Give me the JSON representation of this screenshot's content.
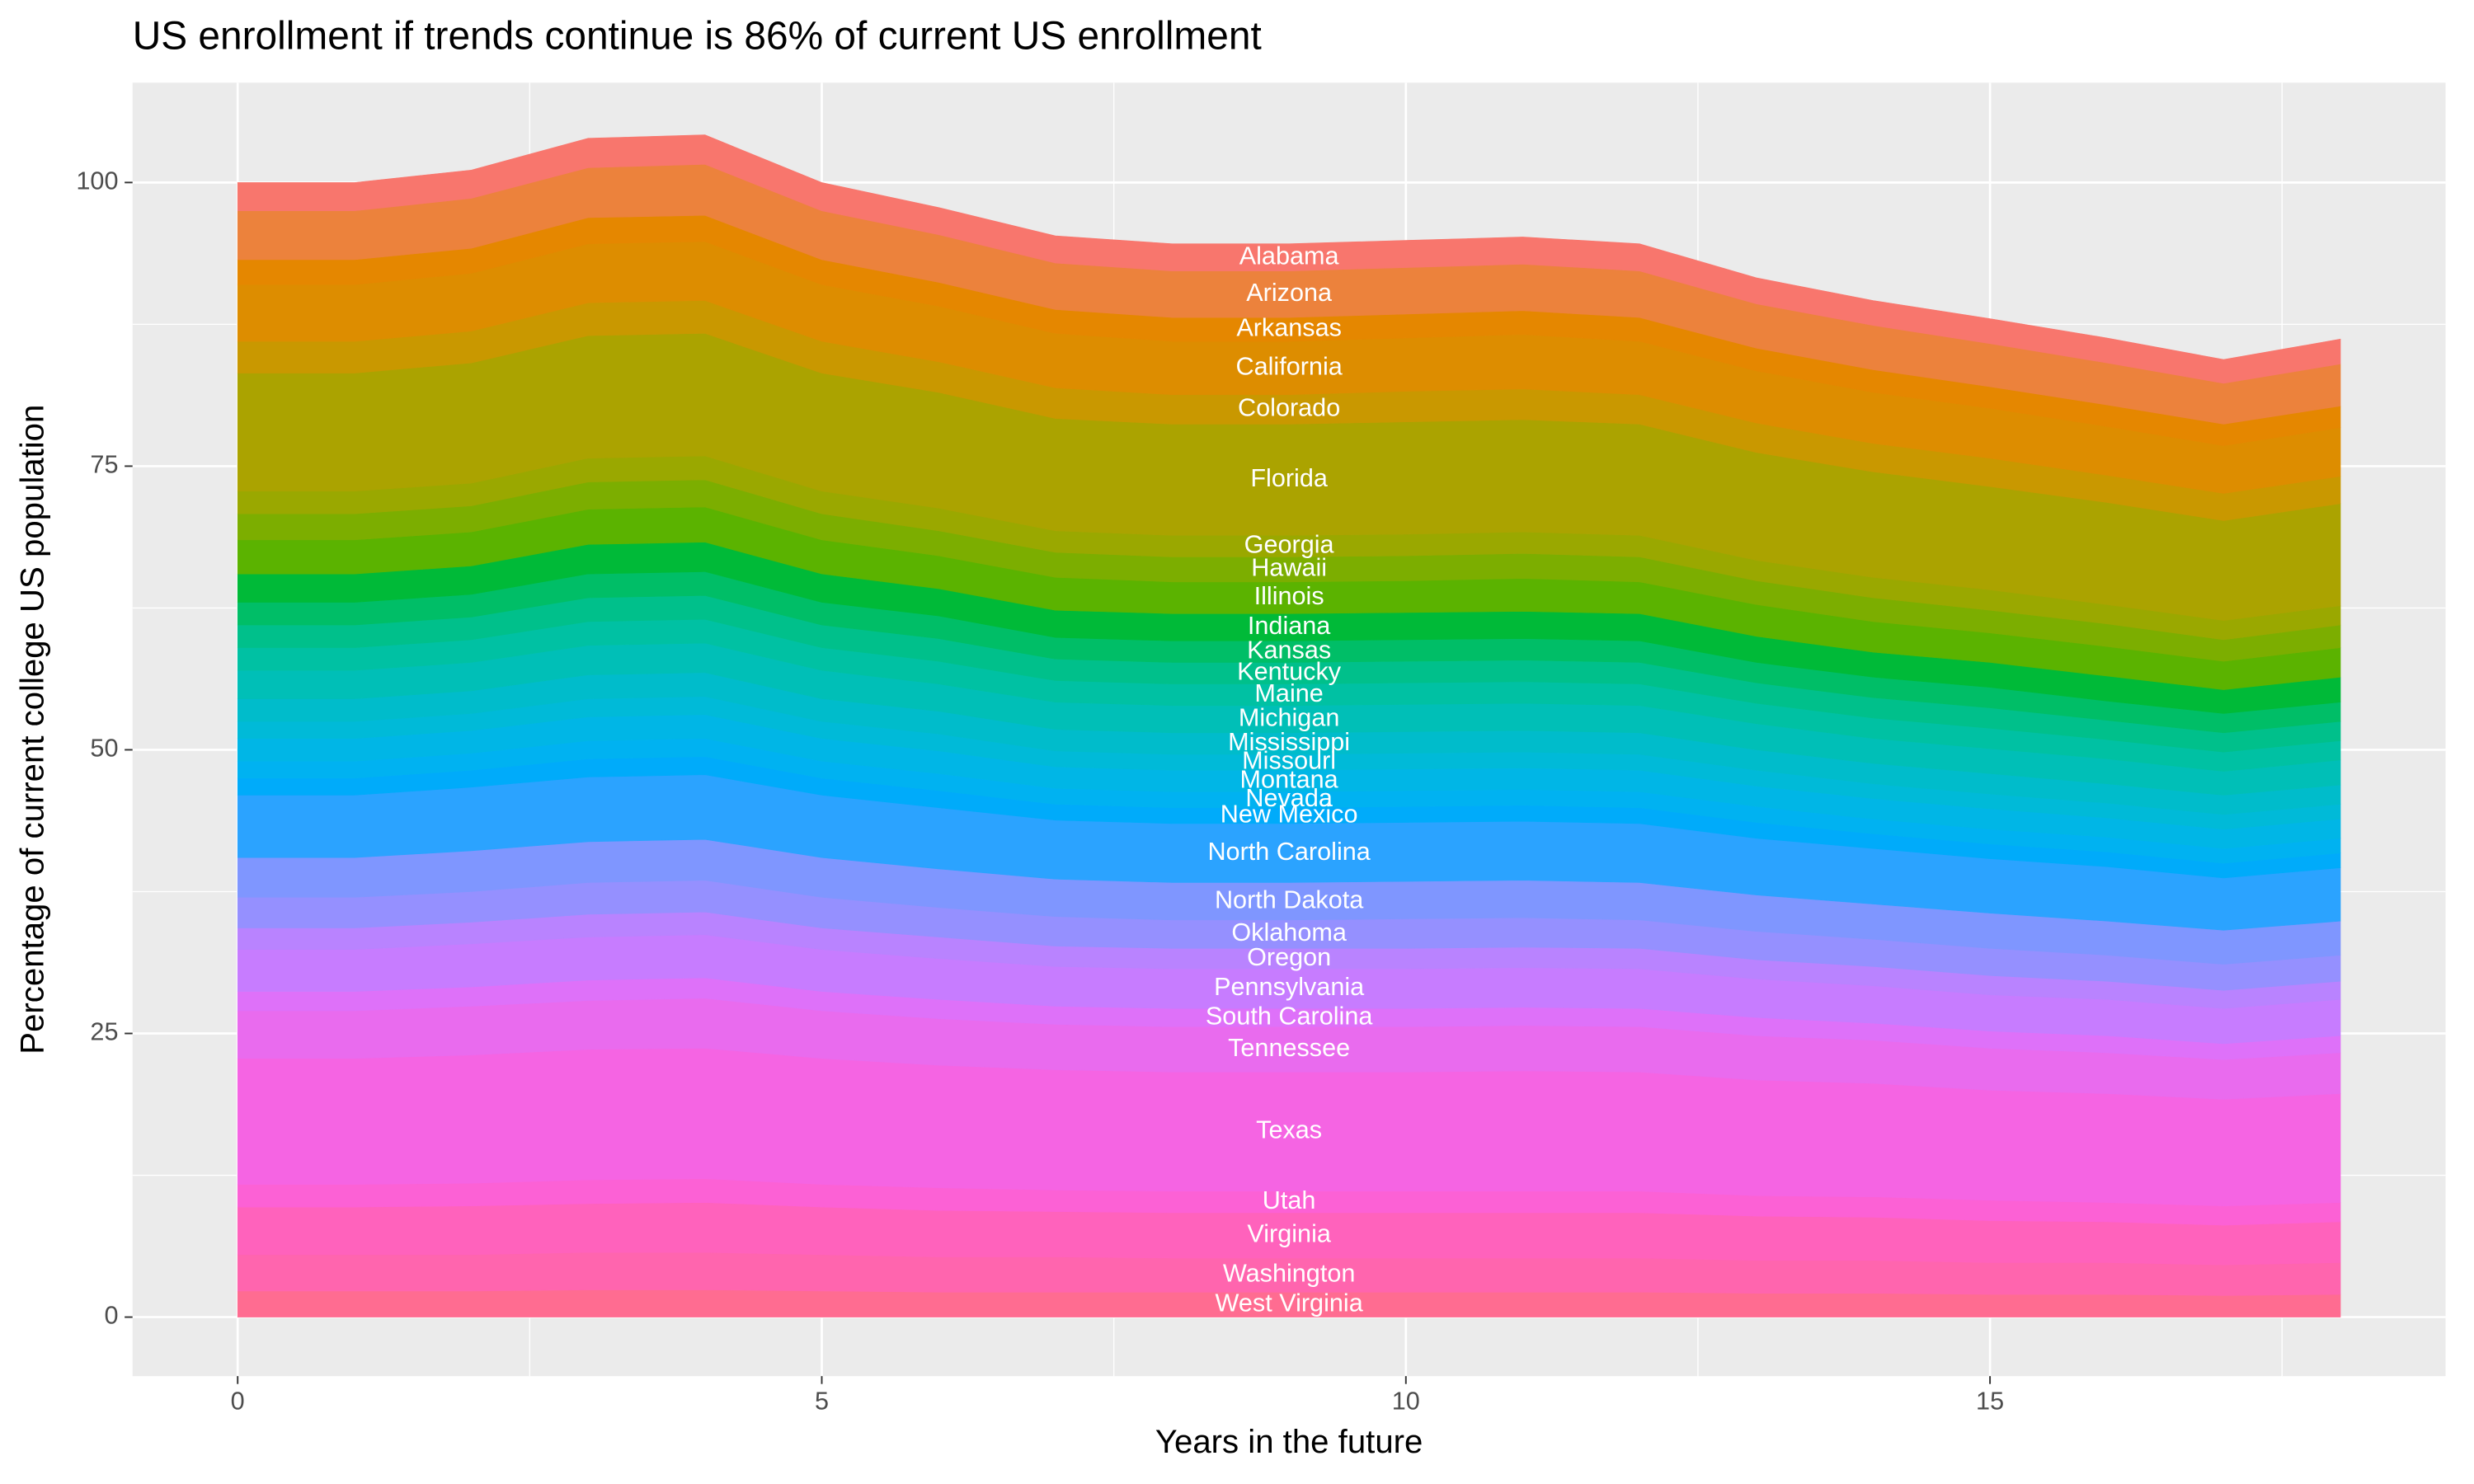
{
  "chart_data": {
    "type": "stacked_area",
    "title": "US enrollment if trends continue is 86% of current US enrollment",
    "x_label": "Years in the future",
    "y_label": "Percentage of current college US population",
    "x": [
      0,
      1,
      2,
      3,
      4,
      5,
      6,
      7,
      8,
      9,
      10,
      11,
      12,
      13,
      14,
      15,
      16,
      17,
      18
    ],
    "xlim": [
      -0.9,
      18.9
    ],
    "ylim": [
      -5.2,
      108.8
    ],
    "xticks": [
      0,
      5,
      10,
      15
    ],
    "yticks": [
      0,
      25,
      50,
      75,
      100
    ],
    "minor_xticks": [
      2.5,
      7.5,
      12.5,
      17.5
    ],
    "minor_yticks": [
      12.5,
      37.5,
      62.5,
      87.5
    ],
    "grid": true,
    "series": [
      {
        "name": "Alabama",
        "color": "#F8766D",
        "values": [
          2.5,
          2.5,
          2.5,
          2.6,
          2.6,
          2.5,
          2.4,
          2.4,
          2.4,
          2.4,
          2.4,
          2.4,
          2.4,
          2.3,
          2.2,
          2.2,
          2.2,
          2.1,
          2.2
        ]
      },
      {
        "name": "Arizona",
        "color": "#EC823C",
        "values": [
          4.3,
          4.3,
          4.4,
          4.4,
          4.5,
          4.3,
          4.2,
          4.1,
          4.1,
          4.1,
          4.1,
          4.1,
          4.1,
          3.9,
          3.9,
          3.8,
          3.7,
          3.6,
          3.7
        ]
      },
      {
        "name": "Arkansas",
        "color": "#E58700",
        "values": [
          2.2,
          2.2,
          2.2,
          2.3,
          2.3,
          2.2,
          2.1,
          2.1,
          2.1,
          2.1,
          2.1,
          2.1,
          2.1,
          2.0,
          2.0,
          1.9,
          1.9,
          1.9,
          1.9
        ]
      },
      {
        "name": "California",
        "color": "#DD8D00",
        "values": [
          5.0,
          5.0,
          5.1,
          5.2,
          5.2,
          5.0,
          4.9,
          4.8,
          4.7,
          4.7,
          4.7,
          4.8,
          4.7,
          4.6,
          4.5,
          4.4,
          4.3,
          4.2,
          4.3
        ]
      },
      {
        "name": "Colorado",
        "color": "#C99800",
        "values": [
          2.8,
          2.8,
          2.8,
          2.9,
          2.9,
          2.8,
          2.7,
          2.7,
          2.6,
          2.6,
          2.7,
          2.7,
          2.6,
          2.6,
          2.5,
          2.5,
          2.4,
          2.4,
          2.4
        ]
      },
      {
        "name": "Florida",
        "color": "#ABA300",
        "values": [
          10.4,
          10.4,
          10.6,
          10.8,
          10.8,
          10.4,
          10.2,
          9.9,
          9.8,
          9.8,
          9.9,
          9.9,
          9.8,
          9.5,
          9.3,
          9.1,
          9.0,
          8.8,
          9.0
        ]
      },
      {
        "name": "Georgia",
        "color": "#9AA800",
        "values": [
          2.0,
          2.0,
          2.0,
          2.1,
          2.1,
          2.0,
          2.0,
          1.9,
          1.9,
          1.9,
          1.9,
          1.9,
          1.9,
          1.8,
          1.8,
          1.8,
          1.7,
          1.7,
          1.7
        ]
      },
      {
        "name": "Hawaii",
        "color": "#7CAE00",
        "values": [
          2.3,
          2.3,
          2.3,
          2.4,
          2.4,
          2.3,
          2.2,
          2.2,
          2.2,
          2.2,
          2.2,
          2.2,
          2.2,
          2.1,
          2.1,
          2.0,
          2.0,
          1.9,
          2.0
        ]
      },
      {
        "name": "Illinois",
        "color": "#5BB300",
        "values": [
          3.0,
          3.0,
          3.0,
          3.1,
          3.1,
          3.0,
          2.9,
          2.9,
          2.8,
          2.8,
          2.8,
          2.9,
          2.8,
          2.8,
          2.7,
          2.6,
          2.6,
          2.5,
          2.6
        ]
      },
      {
        "name": "Indiana",
        "color": "#00BA38",
        "values": [
          2.5,
          2.5,
          2.5,
          2.6,
          2.6,
          2.5,
          2.4,
          2.4,
          2.4,
          2.4,
          2.4,
          2.4,
          2.4,
          2.3,
          2.2,
          2.2,
          2.2,
          2.1,
          2.2
        ]
      },
      {
        "name": "Kansas",
        "color": "#00BE67",
        "values": [
          2.0,
          2.0,
          2.0,
          2.1,
          2.1,
          2.0,
          2.0,
          1.9,
          1.9,
          1.9,
          1.9,
          1.9,
          1.9,
          1.8,
          1.8,
          1.8,
          1.7,
          1.7,
          1.7
        ]
      },
      {
        "name": "Kentucky",
        "color": "#00C08B",
        "values": [
          2.0,
          2.0,
          2.0,
          2.1,
          2.1,
          2.0,
          2.0,
          1.9,
          1.9,
          1.9,
          1.9,
          1.9,
          1.9,
          1.8,
          1.8,
          1.8,
          1.7,
          1.7,
          1.7
        ]
      },
      {
        "name": "Maine",
        "color": "#00C1A3",
        "values": [
          2.0,
          2.0,
          2.0,
          2.1,
          2.1,
          2.0,
          2.0,
          1.9,
          1.9,
          1.9,
          1.9,
          1.9,
          1.9,
          1.8,
          1.8,
          1.8,
          1.7,
          1.7,
          1.7
        ]
      },
      {
        "name": "Michigan",
        "color": "#00BFB7",
        "values": [
          2.5,
          2.5,
          2.5,
          2.6,
          2.6,
          2.5,
          2.4,
          2.4,
          2.4,
          2.4,
          2.4,
          2.4,
          2.4,
          2.3,
          2.2,
          2.2,
          2.2,
          2.1,
          2.2
        ]
      },
      {
        "name": "Mississippi",
        "color": "#00BCCB",
        "values": [
          2.0,
          2.0,
          2.0,
          2.1,
          2.1,
          2.0,
          2.0,
          1.9,
          1.9,
          1.9,
          1.9,
          1.9,
          1.9,
          1.8,
          1.8,
          1.8,
          1.7,
          1.7,
          1.7
        ]
      },
      {
        "name": "Missouri",
        "color": "#00BAD8",
        "values": [
          1.5,
          1.5,
          1.5,
          1.6,
          1.6,
          1.5,
          1.5,
          1.4,
          1.4,
          1.4,
          1.4,
          1.4,
          1.4,
          1.4,
          1.3,
          1.3,
          1.3,
          1.3,
          1.3
        ]
      },
      {
        "name": "Montana",
        "color": "#00B6E6",
        "values": [
          2.0,
          2.0,
          2.0,
          2.1,
          2.1,
          2.0,
          2.0,
          1.9,
          1.9,
          1.9,
          1.9,
          1.9,
          1.9,
          1.8,
          1.8,
          1.8,
          1.7,
          1.7,
          1.7
        ]
      },
      {
        "name": "Nevada",
        "color": "#00B2F1",
        "values": [
          1.5,
          1.5,
          1.5,
          1.6,
          1.6,
          1.5,
          1.5,
          1.4,
          1.4,
          1.4,
          1.4,
          1.4,
          1.4,
          1.4,
          1.3,
          1.3,
          1.3,
          1.3,
          1.3
        ]
      },
      {
        "name": "New Mexico",
        "color": "#00ABFA",
        "values": [
          1.5,
          1.5,
          1.5,
          1.6,
          1.6,
          1.5,
          1.5,
          1.4,
          1.4,
          1.4,
          1.4,
          1.4,
          1.4,
          1.4,
          1.3,
          1.3,
          1.3,
          1.3,
          1.3
        ]
      },
      {
        "name": "North Carolina",
        "color": "#2BA3FF",
        "values": [
          5.5,
          5.5,
          5.6,
          5.7,
          5.7,
          5.5,
          5.4,
          5.2,
          5.2,
          5.2,
          5.2,
          5.2,
          5.2,
          5.0,
          4.9,
          4.8,
          4.8,
          4.6,
          4.7
        ]
      },
      {
        "name": "North Dakota",
        "color": "#7F96FF",
        "values": [
          3.5,
          3.5,
          3.6,
          3.6,
          3.6,
          3.5,
          3.4,
          3.3,
          3.3,
          3.3,
          3.3,
          3.3,
          3.3,
          3.2,
          3.1,
          3.1,
          3.0,
          3.0,
          3.0
        ]
      },
      {
        "name": "Oklahoma",
        "color": "#9590FF",
        "values": [
          2.7,
          2.7,
          2.7,
          2.8,
          2.8,
          2.7,
          2.6,
          2.6,
          2.5,
          2.5,
          2.6,
          2.6,
          2.5,
          2.5,
          2.4,
          2.4,
          2.3,
          2.3,
          2.3
        ]
      },
      {
        "name": "Oregon",
        "color": "#B983FF",
        "values": [
          1.9,
          1.9,
          1.9,
          2.0,
          2.0,
          1.9,
          1.9,
          1.8,
          1.8,
          1.8,
          1.8,
          1.8,
          1.8,
          1.7,
          1.7,
          1.7,
          1.6,
          1.6,
          1.6
        ]
      },
      {
        "name": "Pennsylvania",
        "color": "#C77CFF",
        "values": [
          3.7,
          3.7,
          3.8,
          3.8,
          3.8,
          3.7,
          3.6,
          3.5,
          3.5,
          3.5,
          3.5,
          3.5,
          3.5,
          3.4,
          3.3,
          3.2,
          3.2,
          3.1,
          3.2
        ]
      },
      {
        "name": "South Carolina",
        "color": "#DE71F9",
        "values": [
          1.7,
          1.7,
          1.7,
          1.8,
          1.8,
          1.7,
          1.7,
          1.6,
          1.6,
          1.6,
          1.6,
          1.6,
          1.6,
          1.6,
          1.5,
          1.5,
          1.5,
          1.4,
          1.5
        ]
      },
      {
        "name": "Tennessee",
        "color": "#E96BEE",
        "values": [
          4.2,
          4.2,
          4.3,
          4.3,
          4.4,
          4.2,
          4.1,
          4.0,
          4.0,
          4.0,
          4.0,
          4.0,
          4.0,
          3.9,
          3.8,
          3.7,
          3.6,
          3.5,
          3.6
        ]
      },
      {
        "name": "Texas",
        "color": "#F564E3",
        "values": [
          11.1,
          11.1,
          11.3,
          11.5,
          11.5,
          11.1,
          10.8,
          10.6,
          10.5,
          10.5,
          10.5,
          10.6,
          10.5,
          10.2,
          10.0,
          9.7,
          9.6,
          9.4,
          9.6
        ]
      },
      {
        "name": "Utah",
        "color": "#FC61D5",
        "values": [
          2.0,
          2.0,
          2.0,
          2.1,
          2.1,
          2.0,
          2.0,
          1.9,
          1.9,
          1.9,
          1.9,
          1.9,
          1.9,
          1.8,
          1.8,
          1.8,
          1.7,
          1.7,
          1.7
        ]
      },
      {
        "name": "Virginia",
        "color": "#FF62BC",
        "values": [
          4.2,
          4.2,
          4.3,
          4.3,
          4.4,
          4.2,
          4.1,
          4.0,
          4.0,
          4.0,
          4.0,
          4.0,
          4.0,
          3.9,
          3.8,
          3.7,
          3.6,
          3.5,
          3.6
        ]
      },
      {
        "name": "Washington",
        "color": "#FF65AE",
        "values": [
          3.2,
          3.2,
          3.2,
          3.3,
          3.3,
          3.2,
          3.1,
          3.1,
          3.0,
          3.0,
          3.0,
          3.0,
          3.0,
          2.9,
          2.9,
          2.8,
          2.8,
          2.7,
          2.8
        ]
      },
      {
        "name": "West Virginia",
        "color": "#FF6C91",
        "values": [
          2.3,
          2.3,
          2.3,
          2.4,
          2.4,
          2.3,
          2.2,
          2.2,
          2.2,
          2.2,
          2.2,
          2.2,
          2.2,
          2.1,
          2.1,
          2.0,
          2.0,
          1.9,
          2.0
        ]
      }
    ]
  }
}
